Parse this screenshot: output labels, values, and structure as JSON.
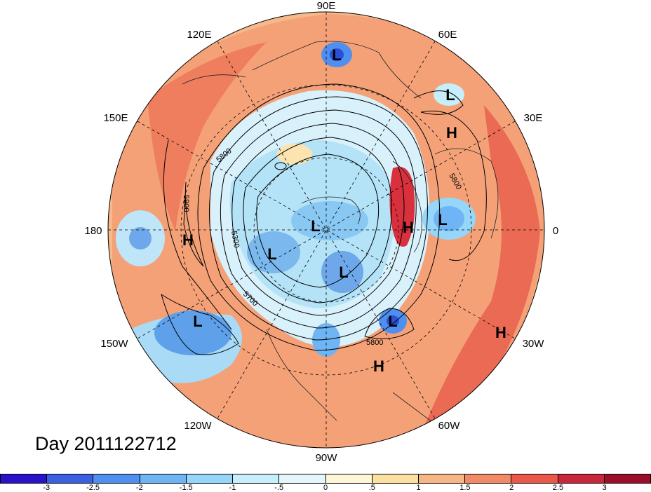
{
  "map": {
    "day_label": "Day 2011122712",
    "longitude_labels": [
      "90E",
      "60E",
      "30E",
      "0",
      "30W",
      "60W",
      "90W",
      "120W",
      "150W",
      "180",
      "150E",
      "120E"
    ],
    "contour_labels": [
      "5800",
      "5900",
      "5300",
      "5700",
      "5800",
      "5800"
    ],
    "pressure_systems": [
      {
        "type": "L"
      },
      {
        "type": "L"
      },
      {
        "type": "H"
      },
      {
        "type": "L"
      },
      {
        "type": "H"
      },
      {
        "type": "L"
      },
      {
        "type": "L"
      },
      {
        "type": "L"
      },
      {
        "type": "H"
      },
      {
        "type": "L"
      },
      {
        "type": "H"
      },
      {
        "type": "H"
      },
      {
        "type": "L"
      }
    ]
  },
  "colorbar": {
    "colors": [
      "#2a12c8",
      "#3a5fe0",
      "#4f8ff0",
      "#6fb4f4",
      "#96d6f8",
      "#c6eefb",
      "#e4f6fc",
      "#fdf7d8",
      "#fbe0a0",
      "#f8b684",
      "#f38a66",
      "#e95848",
      "#c8263a",
      "#9b0d28"
    ],
    "ticks": [
      "-3",
      "-2.5",
      "-2",
      "-1.5",
      "-1",
      "-.5",
      "0",
      ".5",
      "1",
      "1.5",
      "2",
      "2.5",
      "3"
    ]
  }
}
